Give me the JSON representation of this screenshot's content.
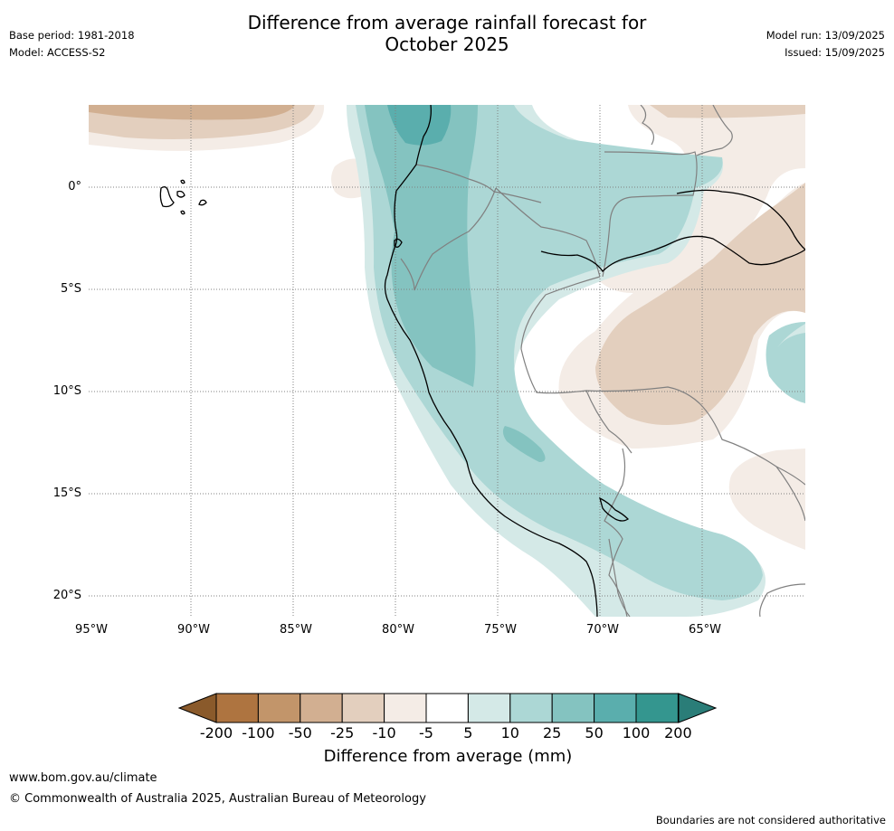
{
  "header": {
    "title_line1": "Difference from average rainfall forecast for",
    "title_line2": "October 2025",
    "base_period": "Base period: 1981-2018",
    "model": "Model: ACCESS-S2",
    "model_run": "Model run: 13/09/2025",
    "issued": "Issued: 15/09/2025"
  },
  "map": {
    "lat_labels": [
      "0°",
      "5°S",
      "10°S",
      "15°S",
      "20°S"
    ],
    "lon_labels": [
      "95°W",
      "90°W",
      "85°W",
      "80°W",
      "75°W",
      "70°W",
      "65°W"
    ],
    "colors": {
      "wet_100": "#5aaead",
      "wet_25": "#84c3c0",
      "wet_10": "#acd7d5",
      "wet_5": "#d4e9e7",
      "dry_5": "#f4ece6",
      "dry_10": "#e3cfbe",
      "dry_25": "#d1af91",
      "coast": "#000000",
      "border": "#808080",
      "grid": "#808080"
    }
  },
  "colorbar": {
    "ticks": [
      "-200",
      "-100",
      "-50",
      "-25",
      "-10",
      "-5",
      "5",
      "10",
      "25",
      "50",
      "100",
      "200"
    ],
    "colors": [
      "#8a5a2b",
      "#ae7440",
      "#c2956a",
      "#d2af91",
      "#e3cfbe",
      "#f4ece6",
      "#ffffff",
      "#d4e9e7",
      "#acd7d5",
      "#84c3c0",
      "#5aaead",
      "#34968f",
      "#2a7d78"
    ],
    "label": "Difference from average (mm)"
  },
  "footer": {
    "url": "www.bom.gov.au/climate",
    "copyright": "© Commonwealth of Australia 2025, Australian Bureau of Meteorology",
    "disclaimer": "Boundaries are not considered authoritative"
  }
}
